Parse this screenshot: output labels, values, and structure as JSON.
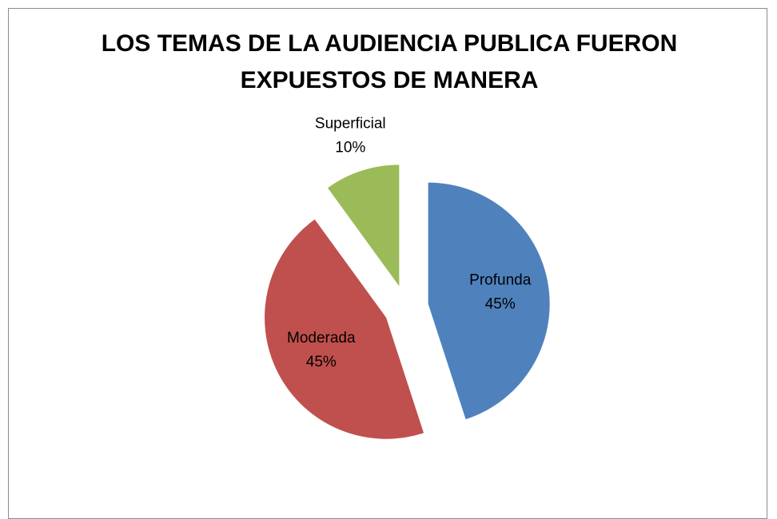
{
  "chart_data": {
    "type": "pie",
    "title": "LOS TEMAS DE LA AUDIENCIA PUBLICA FUERON EXPUESTOS DE MANERA",
    "categories": [
      "Profunda",
      "Moderada",
      "Superficial"
    ],
    "values": [
      45,
      45,
      10
    ],
    "value_labels": [
      "45%",
      "45%",
      "10%"
    ],
    "colors": [
      "#4f81bd",
      "#c0504d",
      "#9bbb59"
    ],
    "exploded": true
  }
}
